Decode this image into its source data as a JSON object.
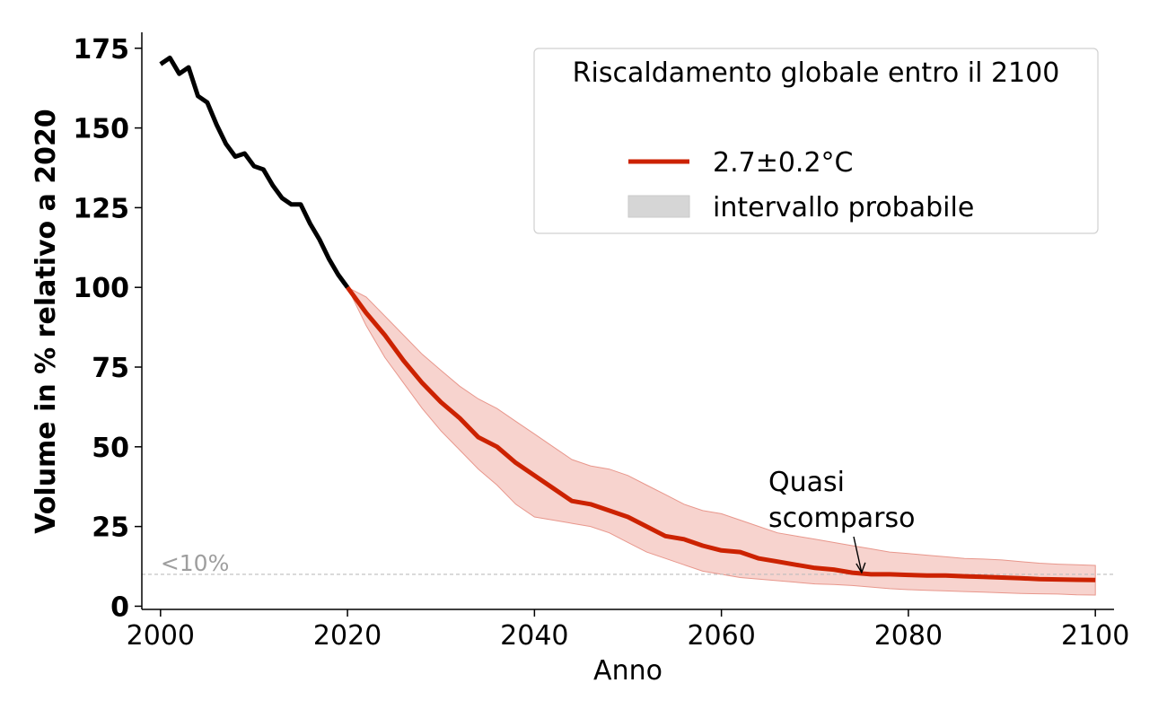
{
  "chart_data": {
    "type": "line",
    "xlabel": "Anno",
    "ylabel": "Volume in % relativo a 2020",
    "xlim": [
      1998,
      2102
    ],
    "ylim": [
      -1,
      180
    ],
    "x_ticks": [
      2000,
      2020,
      2040,
      2060,
      2080,
      2100
    ],
    "y_ticks": [
      0,
      25,
      50,
      75,
      100,
      125,
      150,
      175
    ],
    "grid": false,
    "legend": {
      "placement": "top-right",
      "title": "Riscaldamento globale entro il 2100",
      "entries": [
        {
          "label": "2.7±0.2°C",
          "kind": "line",
          "color": "#cc2200"
        },
        {
          "label": "intervallo probabile",
          "kind": "patch",
          "color": "#d6d6d6"
        }
      ]
    },
    "historical": {
      "color": "#000000",
      "x": [
        2000,
        2001,
        2002,
        2003,
        2004,
        2005,
        2006,
        2007,
        2008,
        2009,
        2010,
        2011,
        2012,
        2013,
        2014,
        2015,
        2016,
        2017,
        2018,
        2019,
        2020
      ],
      "y": [
        170,
        172,
        167,
        169,
        160,
        158,
        151,
        145,
        141,
        142,
        138,
        137,
        132,
        128,
        126,
        126,
        120,
        115,
        109,
        104,
        100
      ]
    },
    "projection": {
      "name": "2.7±0.2°C",
      "color": "#cc2200",
      "band_color": "#f2bbb4",
      "x": [
        2020,
        2022,
        2024,
        2026,
        2028,
        2030,
        2032,
        2034,
        2036,
        2038,
        2040,
        2042,
        2044,
        2046,
        2048,
        2050,
        2052,
        2054,
        2056,
        2058,
        2060,
        2062,
        2064,
        2066,
        2068,
        2070,
        2072,
        2074,
        2076,
        2078,
        2080,
        2082,
        2084,
        2086,
        2088,
        2090,
        2092,
        2094,
        2096,
        2098,
        2100
      ],
      "y": [
        100,
        92,
        85,
        77,
        70,
        64,
        59,
        53,
        50,
        45,
        41,
        37,
        33,
        32,
        30,
        28,
        25,
        22,
        21,
        19,
        17.5,
        17,
        15,
        14,
        13,
        12,
        11.5,
        10.5,
        10,
        10,
        9.8,
        9.6,
        9.6,
        9.4,
        9.2,
        9,
        8.8,
        8.5,
        8.4,
        8.3,
        8.2
      ],
      "lower": [
        100,
        88,
        78,
        70,
        62,
        55,
        49,
        43,
        38,
        32,
        28,
        27,
        26,
        25,
        23,
        20,
        17,
        15,
        13,
        11,
        10,
        9,
        8.5,
        8,
        7.5,
        7,
        6.8,
        6.5,
        6,
        5.5,
        5.2,
        5,
        4.8,
        4.6,
        4.4,
        4.2,
        4,
        3.9,
        3.8,
        3.6,
        3.5
      ],
      "upper": [
        100,
        97,
        91,
        85,
        79,
        74,
        69,
        65,
        62,
        58,
        54,
        50,
        46,
        44,
        43,
        41,
        38,
        35,
        32,
        30,
        29,
        27,
        25,
        23,
        22,
        21,
        20,
        19,
        18,
        17,
        16.5,
        16,
        15.5,
        15,
        14.8,
        14.5,
        14,
        13.5,
        13.2,
        13,
        12.8
      ]
    },
    "reference_line": {
      "y": 10,
      "label": "<10%",
      "color": "#bdbdbd"
    },
    "annotation": {
      "text": [
        "Quasi",
        "scomparso"
      ],
      "x": 2075,
      "y": 10
    }
  }
}
